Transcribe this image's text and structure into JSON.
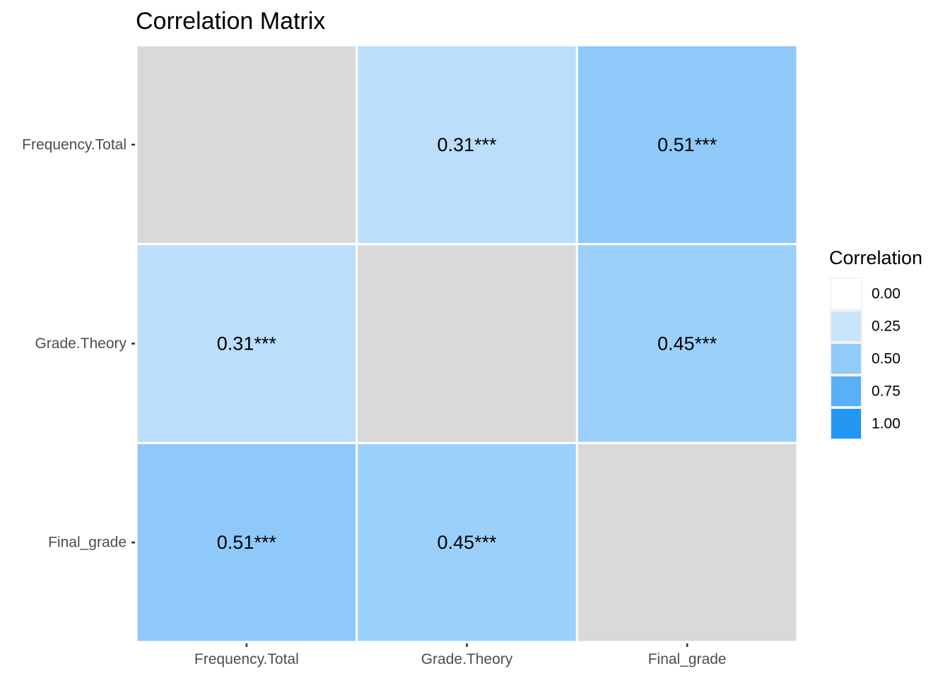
{
  "chart_data": {
    "type": "heatmap",
    "title": "Correlation Matrix",
    "x_categories": [
      "Frequency.Total",
      "Grade.Theory",
      "Final_grade"
    ],
    "y_categories": [
      "Frequency.Total",
      "Grade.Theory",
      "Final_grade"
    ],
    "cells": [
      {
        "x": "Frequency.Total",
        "y": "Frequency.Total",
        "value": null,
        "label": ""
      },
      {
        "x": "Grade.Theory",
        "y": "Frequency.Total",
        "value": 0.31,
        "label": "0.31***"
      },
      {
        "x": "Final_grade",
        "y": "Frequency.Total",
        "value": 0.51,
        "label": "0.51***"
      },
      {
        "x": "Frequency.Total",
        "y": "Grade.Theory",
        "value": 0.31,
        "label": "0.31***"
      },
      {
        "x": "Grade.Theory",
        "y": "Grade.Theory",
        "value": null,
        "label": ""
      },
      {
        "x": "Final_grade",
        "y": "Grade.Theory",
        "value": 0.45,
        "label": "0.45***"
      },
      {
        "x": "Frequency.Total",
        "y": "Final_grade",
        "value": 0.51,
        "label": "0.51***"
      },
      {
        "x": "Grade.Theory",
        "y": "Final_grade",
        "value": 0.45,
        "label": "0.45***"
      },
      {
        "x": "Final_grade",
        "y": "Final_grade",
        "value": null,
        "label": ""
      }
    ],
    "color_scale": {
      "low": "#ffffff",
      "high": "#2196f3",
      "na": "#d9d9d9",
      "range": [
        0,
        1
      ]
    },
    "legend": {
      "title": "Correlation",
      "position": "right",
      "entries": [
        {
          "label": "0.00",
          "value": 0.0
        },
        {
          "label": "0.25",
          "value": 0.25
        },
        {
          "label": "0.50",
          "value": 0.5
        },
        {
          "label": "0.75",
          "value": 0.75
        },
        {
          "label": "1.00",
          "value": 1.0
        }
      ]
    },
    "grid": false
  }
}
